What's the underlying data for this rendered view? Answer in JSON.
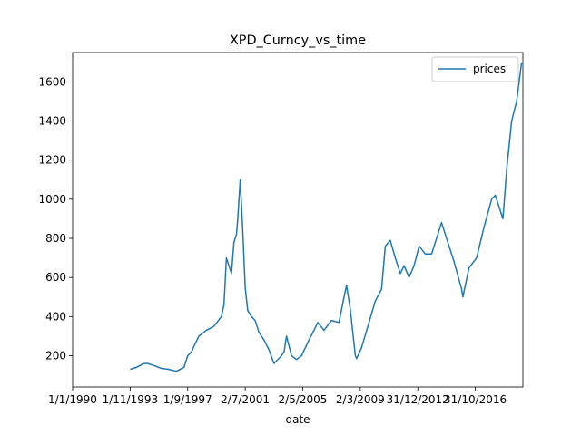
{
  "chart_data": {
    "type": "line",
    "title": "XPD_Curncy_vs_time",
    "xlabel": "date",
    "ylabel": "",
    "x_ticks": [
      "1/1/1990",
      "1/11/1993",
      "1/9/1997",
      "2/7/2001",
      "2/5/2005",
      "2/3/2009",
      "31/12/2012",
      "31/10/2016"
    ],
    "y_ticks": [
      200,
      400,
      600,
      800,
      1000,
      1200,
      1400,
      1600
    ],
    "xlim": [
      "1/1/1990",
      "1/1/2020"
    ],
    "ylim": [
      40,
      1750
    ],
    "grid": false,
    "legend": "top-right",
    "color": "#1f77b4",
    "series": [
      {
        "name": "prices",
        "x": [
          "1/11/1993",
          "1/4/1994",
          "1/10/1994",
          "1/1/1995",
          "1/6/1995",
          "1/12/1995",
          "1/6/1996",
          "1/12/1996",
          "1/6/1997",
          "1/9/1997",
          "1/12/1997",
          "1/3/1998",
          "1/6/1998",
          "1/12/1998",
          "1/6/1999",
          "1/12/1999",
          "1/2/2000",
          "1/4/2000",
          "1/8/2000",
          "1/10/2000",
          "1/12/2000",
          "1/1/2001",
          "1/3/2001",
          "1/5/2001",
          "1/7/2001",
          "1/9/2001",
          "1/12/2001",
          "1/3/2002",
          "1/6/2002",
          "1/10/2002",
          "1/2/2003",
          "1/6/2003",
          "1/12/2003",
          "1/2/2004",
          "1/4/2004",
          "1/8/2004",
          "1/12/2004",
          "1/4/2005",
          "1/10/2005",
          "1/2/2006",
          "1/5/2006",
          "1/10/2006",
          "1/4/2007",
          "1/10/2007",
          "1/2/2008",
          "1/4/2008",
          "1/7/2008",
          "1/11/2008",
          "1/12/2008",
          "1/4/2009",
          "1/10/2009",
          "1/3/2010",
          "1/8/2010",
          "1/11/2010",
          "1/3/2011",
          "1/7/2011",
          "1/11/2011",
          "1/2/2012",
          "1/6/2012",
          "1/10/2012",
          "1/2/2013",
          "1/7/2013",
          "1/12/2013",
          "1/4/2014",
          "1/8/2014",
          "1/12/2014",
          "1/6/2015",
          "1/12/2015",
          "1/1/2016",
          "1/6/2016",
          "1/12/2016",
          "1/6/2017",
          "1/12/2017",
          "1/3/2018",
          "1/9/2018",
          "1/12/2018",
          "1/4/2019",
          "1/8/2019",
          "1/12/2019"
        ],
        "values": [
          130,
          140,
          160,
          160,
          150,
          135,
          130,
          120,
          140,
          200,
          220,
          260,
          300,
          330,
          350,
          400,
          460,
          700,
          620,
          780,
          820,
          900,
          1100,
          850,
          550,
          430,
          400,
          380,
          320,
          280,
          230,
          160,
          200,
          220,
          300,
          200,
          180,
          200,
          280,
          330,
          370,
          330,
          380,
          370,
          500,
          560,
          440,
          200,
          185,
          240,
          370,
          480,
          540,
          760,
          790,
          700,
          620,
          660,
          600,
          660,
          760,
          720,
          720,
          800,
          880,
          800,
          680,
          540,
          500,
          650,
          700,
          860,
          1000,
          1020,
          900,
          1150,
          1400,
          1500,
          1700
        ]
      }
    ]
  }
}
